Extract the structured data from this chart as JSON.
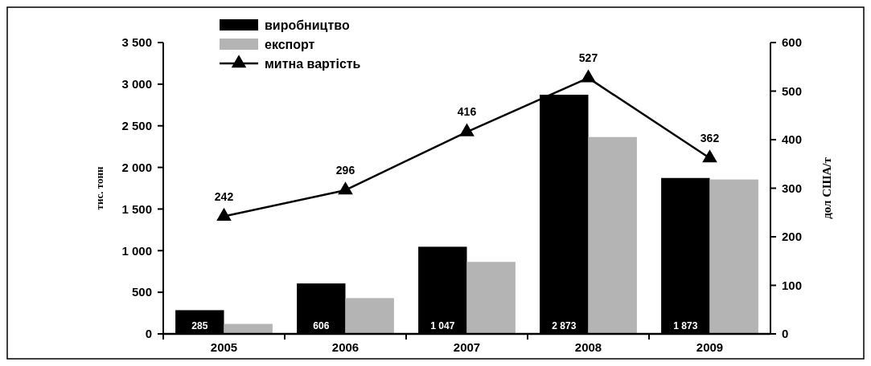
{
  "chart_data": {
    "type": "bar",
    "categories": [
      "2005",
      "2006",
      "2007",
      "2008",
      "2009"
    ],
    "ylabel": "тис. тонн",
    "y2label": "дол США/т",
    "ylim": [
      0,
      3500
    ],
    "yticks": [
      {
        "value": 0,
        "label": "0"
      },
      {
        "value": 500,
        "label": "500"
      },
      {
        "value": 1000,
        "label": "1 000"
      },
      {
        "value": 1500,
        "label": "1 500"
      },
      {
        "value": 2000,
        "label": "2 000"
      },
      {
        "value": 2500,
        "label": "2 500"
      },
      {
        "value": 3000,
        "label": "3 000"
      },
      {
        "value": 3500,
        "label": "3 500"
      }
    ],
    "y2lim": [
      0,
      600
    ],
    "y2ticks": [
      0,
      100,
      200,
      300,
      400,
      500,
      600
    ],
    "legend": "top",
    "grid": false,
    "series": [
      {
        "name": "виробництво",
        "color": "#000000",
        "values": [
          285,
          606,
          1047,
          2873,
          1873
        ],
        "value_labels": [
          "285",
          "606",
          "1 047",
          "2 873",
          "1 873"
        ]
      },
      {
        "name": "експорт",
        "color": "#b4b4b4",
        "values": [
          120,
          430,
          865,
          2365,
          1855
        ]
      },
      {
        "name": "митна вартість",
        "type": "line",
        "axis": "y2",
        "color": "#000000",
        "marker": "triangle",
        "values": [
          242,
          296,
          416,
          527,
          362
        ],
        "value_labels": [
          "242",
          "296",
          "416",
          "527",
          "362"
        ]
      }
    ]
  }
}
